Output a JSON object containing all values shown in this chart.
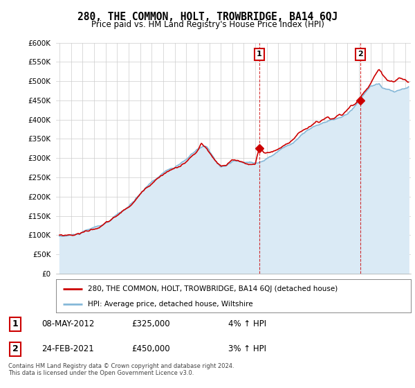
{
  "title": "280, THE COMMON, HOLT, TROWBRIDGE, BA14 6QJ",
  "subtitle": "Price paid vs. HM Land Registry's House Price Index (HPI)",
  "legend_label1": "280, THE COMMON, HOLT, TROWBRIDGE, BA14 6QJ (detached house)",
  "legend_label2": "HPI: Average price, detached house, Wiltshire",
  "footer": "Contains HM Land Registry data © Crown copyright and database right 2024.\nThis data is licensed under the Open Government Licence v3.0.",
  "table_rows": [
    {
      "num": "1",
      "date": "08-MAY-2012",
      "price": "£325,000",
      "hpi": "4% ↑ HPI"
    },
    {
      "num": "2",
      "date": "24-FEB-2021",
      "price": "£450,000",
      "hpi": "3% ↑ HPI"
    }
  ],
  "sale1_x": 2012.35,
  "sale1_y": 325000,
  "sale2_x": 2021.12,
  "sale2_y": 450000,
  "ylim": [
    0,
    600000
  ],
  "yticks": [
    0,
    50000,
    100000,
    150000,
    200000,
    250000,
    300000,
    350000,
    400000,
    450000,
    500000,
    550000,
    600000
  ],
  "xlim_start": 1994.7,
  "xlim_end": 2025.5,
  "color_red": "#cc0000",
  "color_blue": "#85b8d8",
  "color_blue_fill": "#daeaf5",
  "background": "#ffffff",
  "grid_color": "#cccccc"
}
